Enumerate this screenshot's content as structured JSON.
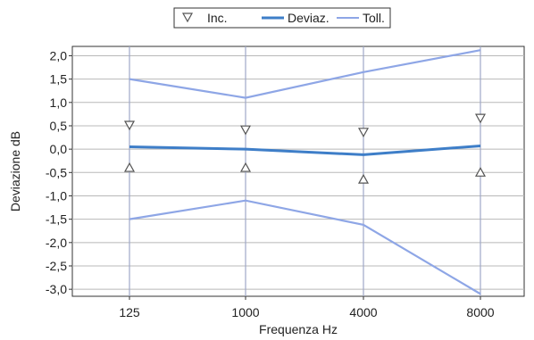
{
  "chart_data": {
    "type": "line",
    "title": "",
    "xlabel": "Frequenza Hz",
    "ylabel": "Deviazione dB",
    "categories": [
      "125",
      "1000",
      "4000",
      "8000"
    ],
    "y_ticks": [
      "2,0",
      "1,5",
      "1,0",
      "0,5",
      "0,0",
      "-0,5",
      "-1,0",
      "-1,5",
      "-2,0",
      "-2,5",
      "-3,0"
    ],
    "ylim": [
      -3.15,
      2.2
    ],
    "grid": true,
    "legend_position": "top-center",
    "legend": {
      "inc_label": "Inc.",
      "dev_label": "Deviaz.",
      "tol_label": "Toll."
    },
    "series": [
      {
        "name": "Deviaz.",
        "color": "#3e7ec8",
        "values": [
          0.05,
          0.0,
          -0.12,
          0.07
        ]
      },
      {
        "name": "Toll.",
        "color": "#8ea6e6",
        "upper": [
          1.5,
          1.1,
          1.65,
          2.12
        ],
        "lower": [
          -1.5,
          -1.1,
          -1.62,
          -3.1
        ]
      },
      {
        "name": "Inc.",
        "color": "#555555",
        "upper": [
          0.5,
          0.4,
          0.35,
          0.65
        ],
        "lower": [
          -0.4,
          -0.4,
          -0.65,
          -0.5
        ]
      }
    ]
  }
}
